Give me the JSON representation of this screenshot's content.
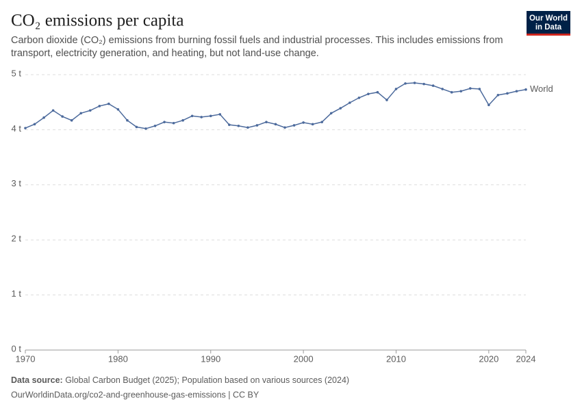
{
  "chart_data": {
    "type": "line",
    "title": "CO₂ emissions per capita",
    "subtitle": "Carbon dioxide (CO₂) emissions from burning fossil fuels and industrial processes. This includes emissions from transport, electricity generation, and heating, but not land-use change.",
    "logo": [
      "Our World",
      "in Data"
    ],
    "source_label": "Data source:",
    "source": "Global Carbon Budget (2025); Population based on various sources (2024)",
    "url": "OurWorldinData.org/co2-and-greenhouse-gas-emissions | CC BY",
    "x": [
      1970,
      1971,
      1972,
      1973,
      1974,
      1975,
      1976,
      1977,
      1978,
      1979,
      1980,
      1981,
      1982,
      1983,
      1984,
      1985,
      1986,
      1987,
      1988,
      1989,
      1990,
      1991,
      1992,
      1993,
      1994,
      1995,
      1996,
      1997,
      1998,
      1999,
      2000,
      2001,
      2002,
      2003,
      2004,
      2005,
      2006,
      2007,
      2008,
      2009,
      2010,
      2011,
      2012,
      2013,
      2014,
      2015,
      2016,
      2017,
      2018,
      2019,
      2020,
      2021,
      2022,
      2023,
      2024
    ],
    "series": [
      {
        "name": "World",
        "color": "#4c6a9c",
        "values": [
          4.03,
          4.1,
          4.22,
          4.35,
          4.24,
          4.17,
          4.3,
          4.35,
          4.43,
          4.47,
          4.37,
          4.17,
          4.05,
          4.02,
          4.07,
          4.14,
          4.12,
          4.17,
          4.25,
          4.23,
          4.25,
          4.28,
          4.09,
          4.07,
          4.04,
          4.08,
          4.14,
          4.1,
          4.04,
          4.08,
          4.13,
          4.1,
          4.14,
          4.3,
          4.39,
          4.49,
          4.58,
          4.65,
          4.68,
          4.54,
          4.74,
          4.84,
          4.85,
          4.83,
          4.8,
          4.74,
          4.68,
          4.7,
          4.75,
          4.74,
          4.45,
          4.63,
          4.66,
          4.7,
          4.73
        ]
      }
    ],
    "xlim": [
      1970,
      2024
    ],
    "xticks": [
      1970,
      1980,
      1990,
      2000,
      2010,
      2020,
      2024
    ],
    "ylim": [
      0,
      5
    ],
    "yticks": [
      {
        "value": 0,
        "label": "0 t"
      },
      {
        "value": 1,
        "label": "1 t"
      },
      {
        "value": 2,
        "label": "2 t"
      },
      {
        "value": 3,
        "label": "3 t"
      },
      {
        "value": 4,
        "label": "4 t"
      },
      {
        "value": 5,
        "label": "5 t"
      }
    ],
    "grid": true
  }
}
